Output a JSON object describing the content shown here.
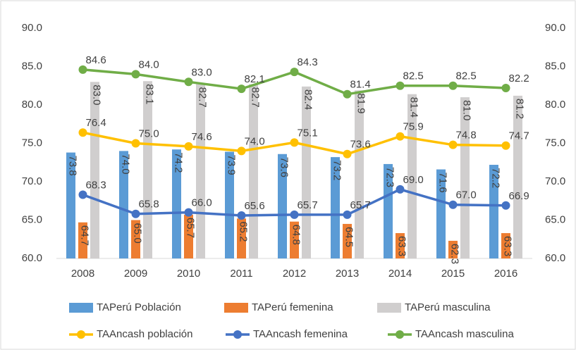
{
  "chart_data": {
    "type": "bar-line",
    "categories": [
      "2008",
      "2009",
      "2010",
      "2011",
      "2012",
      "2013",
      "2014",
      "2015",
      "2016"
    ],
    "series": [
      {
        "name": "TAPerú Población",
        "type": "bar",
        "color": "#5b9bd5",
        "values": [
          73.8,
          74.0,
          74.2,
          73.9,
          73.6,
          73.2,
          72.3,
          71.6,
          72.2
        ],
        "value_labels": [
          "73.8",
          "74.0",
          "74.2",
          "73.9",
          "73.6",
          "73.2",
          "72.3",
          "71.6",
          "72.2"
        ]
      },
      {
        "name": "TAPerú femenina",
        "type": "bar",
        "color": "#ed7d31",
        "values": [
          64.7,
          65.0,
          65.7,
          65.2,
          64.8,
          64.5,
          63.3,
          62.3,
          63.3
        ],
        "value_labels": [
          "64.7",
          "65.0",
          "65.7",
          "65.2",
          "64.8",
          "64.5",
          "63.3",
          "62.3",
          "63.3"
        ]
      },
      {
        "name": "TAPerú masculina",
        "type": "bar",
        "color": "#d0cece",
        "values": [
          83.0,
          83.1,
          82.7,
          82.7,
          82.4,
          81.9,
          81.4,
          81.0,
          81.2
        ],
        "value_labels": [
          "83.0",
          "83.1",
          "82.7",
          "82.7",
          "82.4",
          "81.9",
          "81.4",
          "81.0",
          "81.2"
        ]
      },
      {
        "name": "TAAncash población",
        "type": "line",
        "axis": "y2",
        "color": "#ffc000",
        "values": [
          76.4,
          75.0,
          74.6,
          74.0,
          75.1,
          73.6,
          75.9,
          74.8,
          74.7
        ],
        "value_labels": [
          "76.4",
          "75.0",
          "74.6",
          "74.0",
          "75.1",
          "73.6",
          "75.9",
          "74.8",
          "74.7"
        ]
      },
      {
        "name": "TAAncash femenina",
        "type": "line",
        "axis": "y2",
        "color": "#4472c4",
        "values": [
          68.3,
          65.8,
          66.0,
          65.6,
          65.7,
          65.7,
          69.0,
          67.0,
          66.9
        ],
        "value_labels": [
          "68.3",
          "65.8",
          "66.0",
          "65.6",
          "65.7",
          "65.7",
          "69.0",
          "67.0",
          "66.9"
        ]
      },
      {
        "name": "TAAncash masculina",
        "type": "line",
        "axis": "y2",
        "color": "#70ad47",
        "values": [
          84.6,
          84.0,
          83.0,
          82.1,
          84.3,
          81.4,
          82.5,
          82.5,
          82.2
        ],
        "value_labels": [
          "84.6",
          "84.0",
          "83.0",
          "82.1",
          "84.3",
          "81.4",
          "82.5",
          "82.5",
          "82.2"
        ]
      }
    ],
    "ylim": [
      60,
      90
    ],
    "yticks": [
      {
        "value": 60,
        "label": "60.0"
      },
      {
        "value": 65,
        "label": "65.0"
      },
      {
        "value": 70,
        "label": "70.0"
      },
      {
        "value": 75,
        "label": "75.0"
      },
      {
        "value": 80,
        "label": "80.0"
      },
      {
        "value": 85,
        "label": "85.0"
      },
      {
        "value": 90,
        "label": "90.0"
      }
    ],
    "y2lim": [
      60,
      90
    ],
    "y2ticks": [
      {
        "value": 60,
        "label": "60.0"
      },
      {
        "value": 65,
        "label": "65.0"
      },
      {
        "value": 70,
        "label": "70.0"
      },
      {
        "value": 75,
        "label": "75.0"
      },
      {
        "value": 80,
        "label": "80.0"
      },
      {
        "value": 85,
        "label": "85.0"
      },
      {
        "value": 90,
        "label": "90.0"
      }
    ],
    "grid": false,
    "legend": "bottom"
  }
}
